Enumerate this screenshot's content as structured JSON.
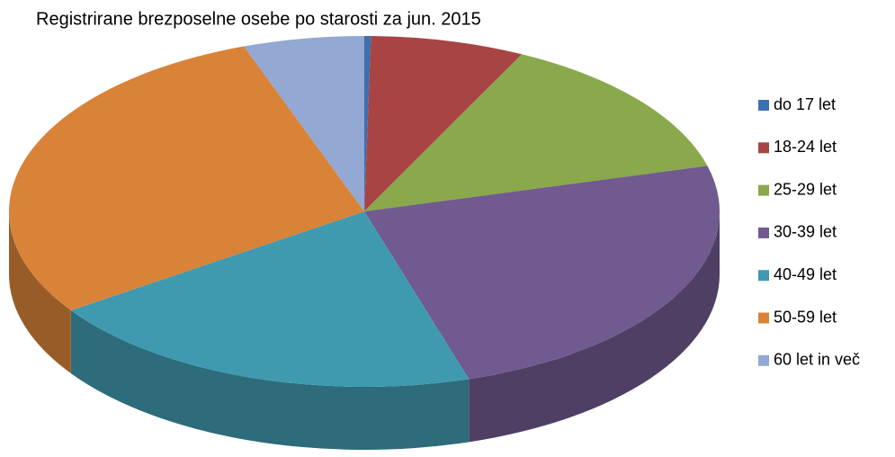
{
  "chart_data": {
    "type": "pie",
    "title": "Registrirane brezposelne osebe po starosti za jun. 2015",
    "categories": [
      "do 17 let",
      "18-24 let",
      "25-29 let",
      "30-39 let",
      "40-49 let",
      "50-59 let",
      "60 let in več"
    ],
    "values": [
      0.3,
      7,
      13.5,
      24.4,
      20.2,
      29,
      5.5
    ],
    "colors": [
      "#3e6fb0",
      "#a84444",
      "#8aa84c",
      "#715a8f",
      "#3f9ab0",
      "#d98339",
      "#93a8d2"
    ],
    "legend": "right"
  }
}
